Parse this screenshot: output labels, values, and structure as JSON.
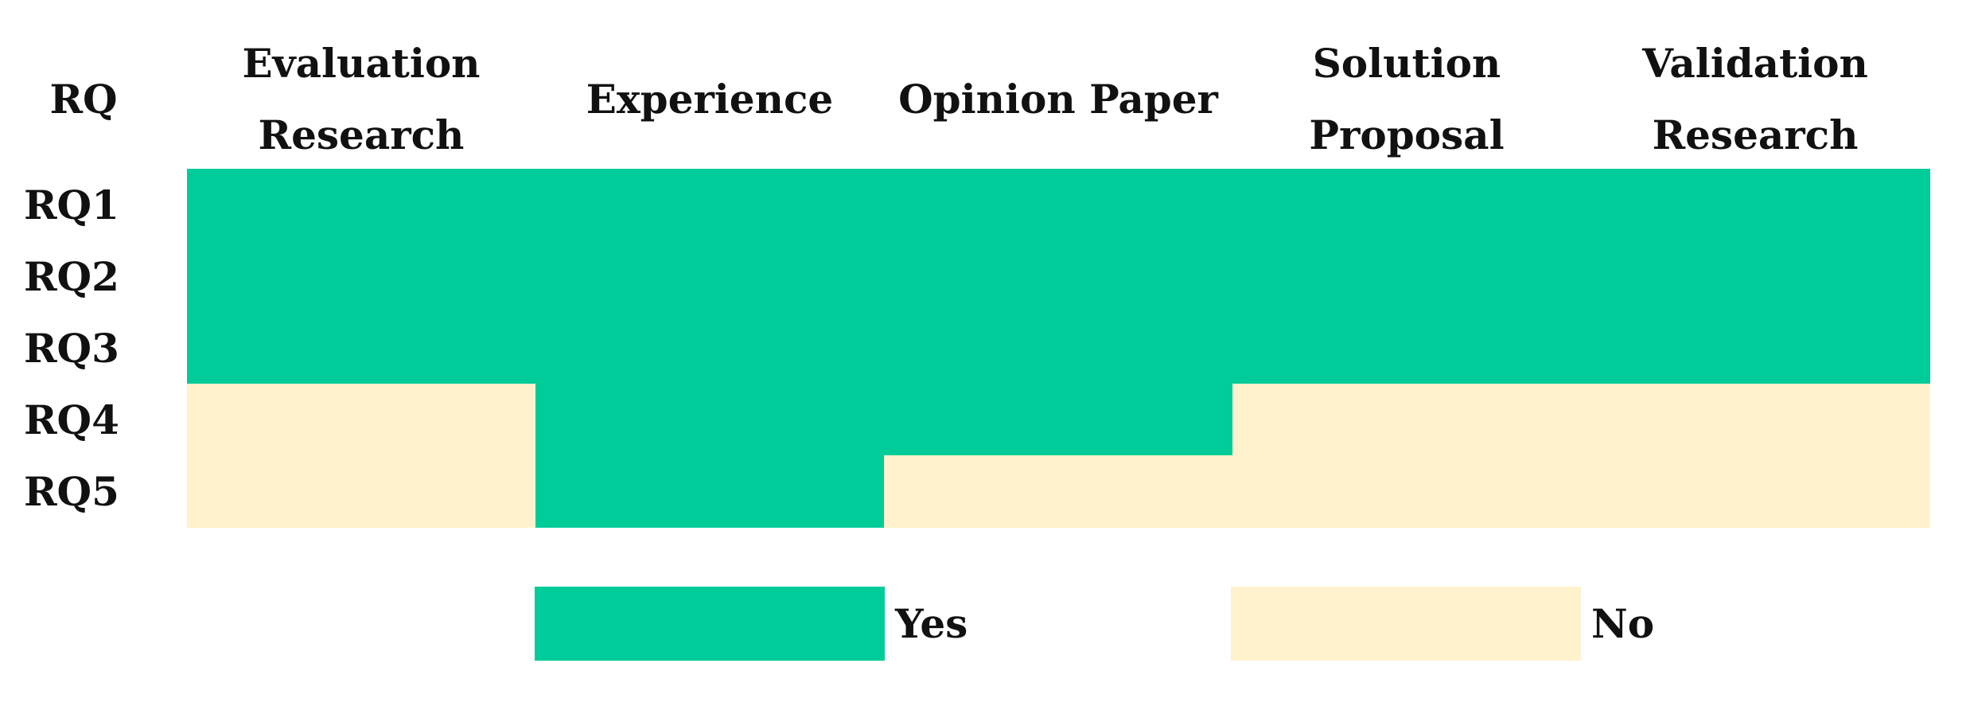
{
  "chart_data": {
    "type": "heatmap",
    "corner_label": "RQ",
    "columns": [
      [
        "Evaluation",
        "Research"
      ],
      [
        "Experience"
      ],
      [
        "Opinion Paper"
      ],
      [
        "Solution",
        "Proposal"
      ],
      [
        "Validation",
        "Research"
      ]
    ],
    "rows": [
      "RQ1",
      "RQ2",
      "RQ3",
      "RQ4",
      "RQ5"
    ],
    "values": [
      [
        "Yes",
        "Yes",
        "Yes",
        "Yes",
        "Yes"
      ],
      [
        "Yes",
        "Yes",
        "Yes",
        "Yes",
        "Yes"
      ],
      [
        "Yes",
        "Yes",
        "Yes",
        "Yes",
        "Yes"
      ],
      [
        "No",
        "Yes",
        "Yes",
        "No",
        "No"
      ],
      [
        "No",
        "Yes",
        "No",
        "No",
        "No"
      ]
    ],
    "legend": [
      {
        "label": "Yes",
        "color": "#00CC99"
      },
      {
        "label": "No",
        "color": "#FFF2CC"
      }
    ]
  }
}
